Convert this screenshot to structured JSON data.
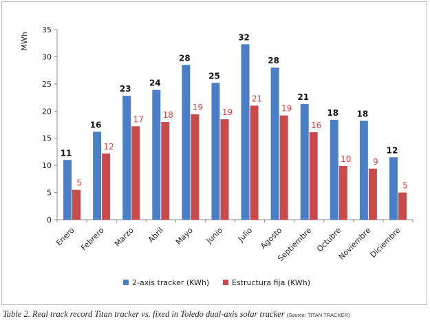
{
  "colors": {
    "series_a": "#4a7fc8",
    "series_b": "#c84a4a",
    "label_b": "#e03b3b",
    "axis": "#8a8a8a"
  },
  "chart_data": {
    "type": "bar",
    "title": "",
    "xlabel": "",
    "ylabel": "MWh",
    "ylim": [
      0,
      35
    ],
    "yticks": [
      0,
      5,
      10,
      15,
      20,
      25,
      30,
      35
    ],
    "grid": false,
    "legend": "bottom",
    "categories": [
      "Enero",
      "Febrero",
      "Marzo",
      "Abril",
      "Mayo",
      "Junio",
      "Julio",
      "Agosto",
      "Septiembre",
      "Octubre",
      "Noviembre",
      "Diciembre"
    ],
    "series": [
      {
        "name": "2-axis tracker  (KWh)",
        "values": [
          11,
          16.2,
          22.8,
          23.9,
          28.5,
          25.2,
          32.3,
          28,
          21.3,
          18.4,
          18.2,
          11.5
        ],
        "labels": [
          "11",
          "16",
          "23",
          "24",
          "28",
          "25",
          "32",
          "28",
          "21",
          "18",
          "18",
          "12"
        ]
      },
      {
        "name": "Estructura fija  (KWh)",
        "values": [
          5.5,
          12.2,
          17.2,
          18,
          19.4,
          18.5,
          21,
          19.2,
          16.1,
          9.9,
          9.4,
          5
        ],
        "labels": [
          "5",
          "12",
          "17",
          "18",
          "19",
          "19",
          "21",
          "19",
          "16",
          "10",
          "9",
          "5"
        ]
      }
    ]
  },
  "caption": {
    "text": "Table 2. Real track record Titan tracker vs. fixed in Toledo dual-axis solar tracker ",
    "source": "(Source: TITAN TRACKER)"
  }
}
